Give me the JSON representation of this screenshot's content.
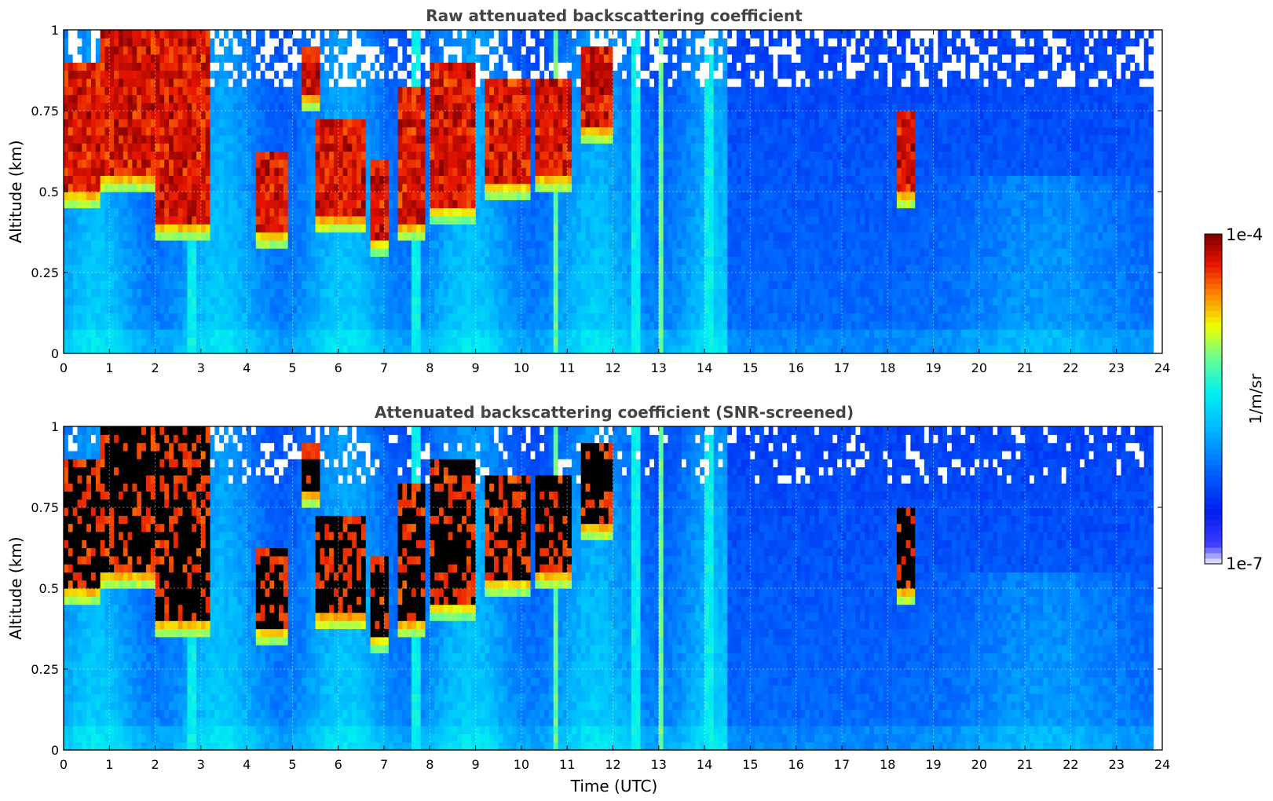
{
  "chart_data": [
    {
      "type": "heatmap",
      "title": "Raw attenuated backscattering coefficient",
      "xlabel": "",
      "ylabel": "Altitude (km)",
      "xlim": [
        0,
        24
      ],
      "ylim": [
        0,
        1
      ],
      "xticks": [
        "0",
        "1",
        "2",
        "3",
        "4",
        "5",
        "6",
        "7",
        "8",
        "9",
        "10",
        "11",
        "12",
        "13",
        "14",
        "15",
        "16",
        "17",
        "18",
        "19",
        "20",
        "21",
        "22",
        "23",
        "24"
      ],
      "yticks": [
        "0",
        "0.25",
        "0.5",
        "0.75",
        "1"
      ],
      "data_end_time": 23.8,
      "grid": true,
      "screened": false,
      "aerosol_layers": [
        {
          "start": 0.0,
          "end": 0.8,
          "base": 0.5,
          "top": 0.9
        },
        {
          "start": 0.8,
          "end": 2.0,
          "base": 0.55,
          "top": 1.0
        },
        {
          "start": 2.0,
          "end": 3.2,
          "base": 0.4,
          "top": 1.0
        },
        {
          "start": 4.2,
          "end": 4.9,
          "base": 0.38,
          "top": 0.62
        },
        {
          "start": 5.2,
          "end": 5.6,
          "base": 0.8,
          "top": 0.95
        },
        {
          "start": 5.5,
          "end": 6.6,
          "base": 0.42,
          "top": 0.72
        },
        {
          "start": 6.7,
          "end": 7.1,
          "base": 0.36,
          "top": 0.6
        },
        {
          "start": 7.3,
          "end": 7.9,
          "base": 0.4,
          "top": 0.82
        },
        {
          "start": 8.0,
          "end": 9.0,
          "base": 0.46,
          "top": 0.9
        },
        {
          "start": 9.2,
          "end": 10.2,
          "base": 0.53,
          "top": 0.85
        },
        {
          "start": 10.3,
          "end": 11.1,
          "base": 0.55,
          "top": 0.85
        },
        {
          "start": 11.3,
          "end": 12.0,
          "base": 0.7,
          "top": 0.95
        },
        {
          "start": 18.2,
          "end": 18.6,
          "base": 0.5,
          "top": 0.75
        }
      ],
      "bright_columns": [
        2.8,
        7.7,
        10.75,
        12.5,
        13.05,
        14.1
      ]
    },
    {
      "type": "heatmap",
      "title": "Attenuated backscattering coefficient (SNR-screened)",
      "xlabel": "Time (UTC)",
      "ylabel": "Altitude (km)",
      "xlim": [
        0,
        24
      ],
      "ylim": [
        0,
        1
      ],
      "xticks": [
        "0",
        "1",
        "2",
        "3",
        "4",
        "5",
        "6",
        "7",
        "8",
        "9",
        "10",
        "11",
        "12",
        "13",
        "14",
        "15",
        "16",
        "17",
        "18",
        "19",
        "20",
        "21",
        "22",
        "23",
        "24"
      ],
      "yticks": [
        "0",
        "0.25",
        "0.5",
        "0.75",
        "1"
      ],
      "data_end_time": 23.8,
      "grid": true,
      "screened": true,
      "aerosol_layers": [
        {
          "start": 0.0,
          "end": 0.8,
          "base": 0.5,
          "top": 0.9
        },
        {
          "start": 0.8,
          "end": 2.0,
          "base": 0.55,
          "top": 1.0
        },
        {
          "start": 2.0,
          "end": 3.2,
          "base": 0.4,
          "top": 1.0
        },
        {
          "start": 4.2,
          "end": 4.9,
          "base": 0.38,
          "top": 0.62
        },
        {
          "start": 5.2,
          "end": 5.6,
          "base": 0.8,
          "top": 0.95
        },
        {
          "start": 5.5,
          "end": 6.6,
          "base": 0.42,
          "top": 0.72
        },
        {
          "start": 6.7,
          "end": 7.1,
          "base": 0.36,
          "top": 0.6
        },
        {
          "start": 7.3,
          "end": 7.9,
          "base": 0.4,
          "top": 0.82
        },
        {
          "start": 8.0,
          "end": 9.0,
          "base": 0.46,
          "top": 0.9
        },
        {
          "start": 9.2,
          "end": 10.2,
          "base": 0.53,
          "top": 0.85
        },
        {
          "start": 10.3,
          "end": 11.1,
          "base": 0.55,
          "top": 0.85
        },
        {
          "start": 11.3,
          "end": 12.0,
          "base": 0.7,
          "top": 0.95
        },
        {
          "start": 18.2,
          "end": 18.6,
          "base": 0.5,
          "top": 0.75
        }
      ],
      "bright_columns": [
        2.8,
        7.7,
        10.75,
        12.5,
        13.05,
        14.1
      ]
    }
  ],
  "colorbar": {
    "label": "1/m/sr",
    "max_label": "1e-4",
    "min_label": "1e-7",
    "vmin": 1e-07,
    "vmax": 0.0001,
    "scale": "log",
    "colors": [
      "#eeeeff",
      "#0000ff",
      "#00bfff",
      "#00ffff",
      "#80ff80",
      "#ffff00",
      "#ff8000",
      "#ff0000",
      "#800000"
    ]
  }
}
